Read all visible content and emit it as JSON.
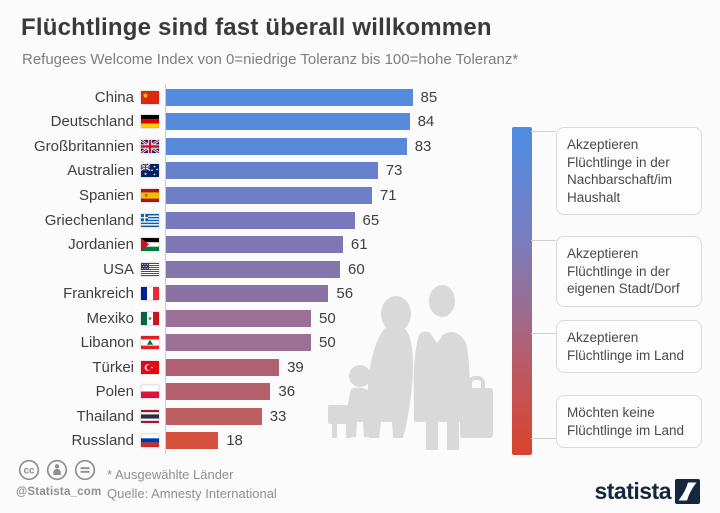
{
  "header": {
    "title": "Flüchtlinge sind fast überall willkommen",
    "subtitle": "Refugees Welcome Index von 0=niedrige Toleranz bis 100=hohe Toleranz*"
  },
  "chart_data": {
    "type": "bar",
    "orientation": "horizontal",
    "value_range": [
      0,
      100
    ],
    "categories": [
      "China",
      "Deutschland",
      "Großbritannien",
      "Australien",
      "Spanien",
      "Griechenland",
      "Jordanien",
      "USA",
      "Frankreich",
      "Mexiko",
      "Libanon",
      "Türkei",
      "Polen",
      "Thailand",
      "Russland"
    ],
    "values": [
      85,
      84,
      83,
      73,
      71,
      65,
      61,
      60,
      56,
      50,
      50,
      39,
      36,
      33,
      18
    ],
    "bars": [
      {
        "label": "China",
        "flag": "china",
        "value": 85,
        "color": "#558bdc"
      },
      {
        "label": "Deutschland",
        "flag": "germany",
        "value": 84,
        "color": "#568adb"
      },
      {
        "label": "Großbritannien",
        "flag": "uk",
        "value": 83,
        "color": "#5889d8"
      },
      {
        "label": "Australien",
        "flag": "australia",
        "value": 73,
        "color": "#6781cc"
      },
      {
        "label": "Spanien",
        "flag": "spain",
        "value": 71,
        "color": "#6d7fc6"
      },
      {
        "label": "Griechenland",
        "flag": "greece",
        "value": 65,
        "color": "#7679bc"
      },
      {
        "label": "Jordanien",
        "flag": "jordan",
        "value": 61,
        "color": "#7f77b3"
      },
      {
        "label": "USA",
        "flag": "usa",
        "value": 60,
        "color": "#8276ad"
      },
      {
        "label": "Frankreich",
        "flag": "france",
        "value": 56,
        "color": "#8a73a3"
      },
      {
        "label": "Mexiko",
        "flag": "mexico",
        "value": 50,
        "color": "#9a7097"
      },
      {
        "label": "Libanon",
        "flag": "lebanon",
        "value": 50,
        "color": "#9a7097"
      },
      {
        "label": "Türkei",
        "flag": "turkey",
        "value": 39,
        "color": "#b06073"
      },
      {
        "label": "Polen",
        "flag": "poland",
        "value": 36,
        "color": "#b45f6c"
      },
      {
        "label": "Thailand",
        "flag": "thailand",
        "value": 33,
        "color": "#bb5f62"
      },
      {
        "label": "Russland",
        "flag": "russia",
        "value": 18,
        "color": "#d5503d"
      }
    ],
    "legend": [
      {
        "label": "Akzeptieren Flüchtlinge in der Nachbarschaft/im Haushalt"
      },
      {
        "label": "Akzeptieren Flüchtlinge in der eigenen Stadt/Dorf"
      },
      {
        "label": "Akzeptieren Flüchtlinge im Land"
      },
      {
        "label": "Möchten keine Flüchtlinge im Land"
      }
    ],
    "legend_gradient": {
      "top": "#4d8ce4",
      "middle": "#9a6d92",
      "bottom": "#d8432d"
    },
    "grid": false,
    "legend_position": "right"
  },
  "footer": {
    "license_icons": [
      "cc-icon",
      "attribution-person-icon",
      "no-derivatives-icon"
    ],
    "handle": "@Statista_com",
    "note": "* Ausgewählte Länder",
    "source": "Quelle: Amnesty International",
    "brand": "statista"
  }
}
